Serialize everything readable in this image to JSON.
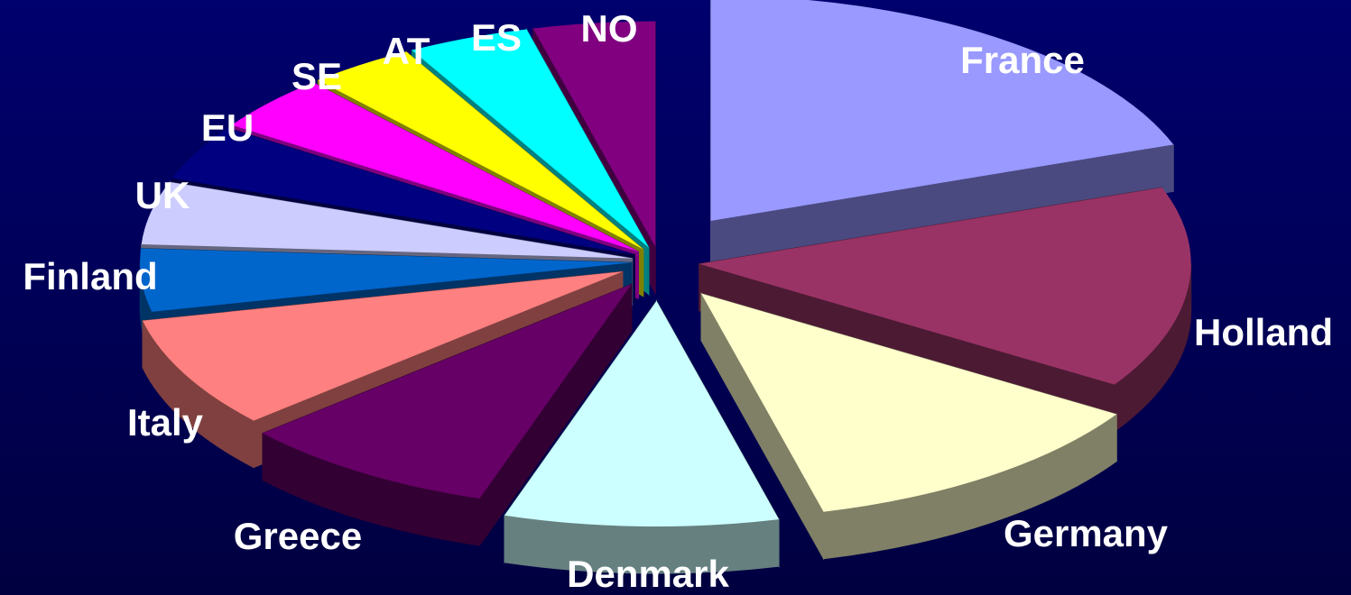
{
  "chart_data": {
    "type": "pie",
    "title": "",
    "style": "3d-exploded",
    "start_angle_deg": 0,
    "direction": "clockwise",
    "slices": [
      {
        "label": "France",
        "value": 19.5,
        "color": "#9999ff",
        "side": "#4a4a80"
      },
      {
        "label": "Holland",
        "value": 14.5,
        "color": "#993366",
        "side": "#4c1a33"
      },
      {
        "label": "Germany",
        "value": 12.0,
        "color": "#ffffcc",
        "side": "#808066"
      },
      {
        "label": "Denmark",
        "value": 9.0,
        "color": "#ccffff",
        "side": "#668080"
      },
      {
        "label": "Greece",
        "value": 8.5,
        "color": "#660066",
        "side": "#330033"
      },
      {
        "label": "Italy",
        "value": 8.0,
        "color": "#ff8080",
        "side": "#804040"
      },
      {
        "label": "Finland",
        "value": 4.5,
        "color": "#0066cc",
        "side": "#003366"
      },
      {
        "label": "UK",
        "value": 4.5,
        "color": "#ccccff",
        "side": "#666680"
      },
      {
        "label": "EU",
        "value": 4.0,
        "color": "#000080",
        "side": "#000040"
      },
      {
        "label": "SE",
        "value": 4.0,
        "color": "#ff00ff",
        "side": "#800080"
      },
      {
        "label": "AT",
        "value": 3.5,
        "color": "#ffff00",
        "side": "#808000"
      },
      {
        "label": "ES",
        "value": 4.0,
        "color": "#00ffff",
        "side": "#008080"
      },
      {
        "label": "NO",
        "value": 4.0,
        "color": "#800080",
        "side": "#400040"
      }
    ]
  }
}
